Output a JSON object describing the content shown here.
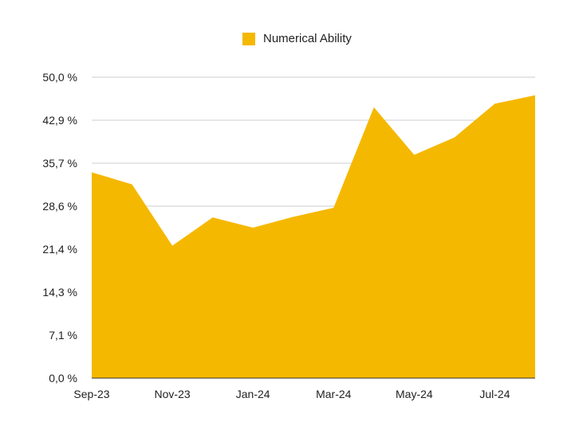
{
  "chart_data": {
    "type": "area",
    "title": "",
    "xlabel": "",
    "ylabel": "",
    "x": [
      "Sep-23",
      "Oct-23",
      "Nov-23",
      "Dec-23",
      "Jan-24",
      "Feb-24",
      "Mar-24",
      "Apr-24",
      "May-24",
      "Jun-24",
      "Jul-24",
      "Aug-24"
    ],
    "xtick_labels": [
      "Sep-23",
      "Nov-23",
      "Jan-24",
      "Mar-24",
      "May-24",
      "Jul-24"
    ],
    "ytick_labels": [
      "50,0 %",
      "42,9 %",
      "35,7 %",
      "28,6 %",
      "21,4 %",
      "14,3 %",
      "7,1 %",
      "0,0 %"
    ],
    "ylim": [
      0,
      50
    ],
    "grid": true,
    "legend_position": "top",
    "series": [
      {
        "name": "Numerical Ability",
        "color": "#f5b800",
        "values": [
          34.2,
          32.2,
          22.0,
          26.7,
          25.0,
          26.8,
          28.3,
          45.0,
          37.1,
          40.0,
          45.6,
          47.0
        ]
      }
    ]
  }
}
